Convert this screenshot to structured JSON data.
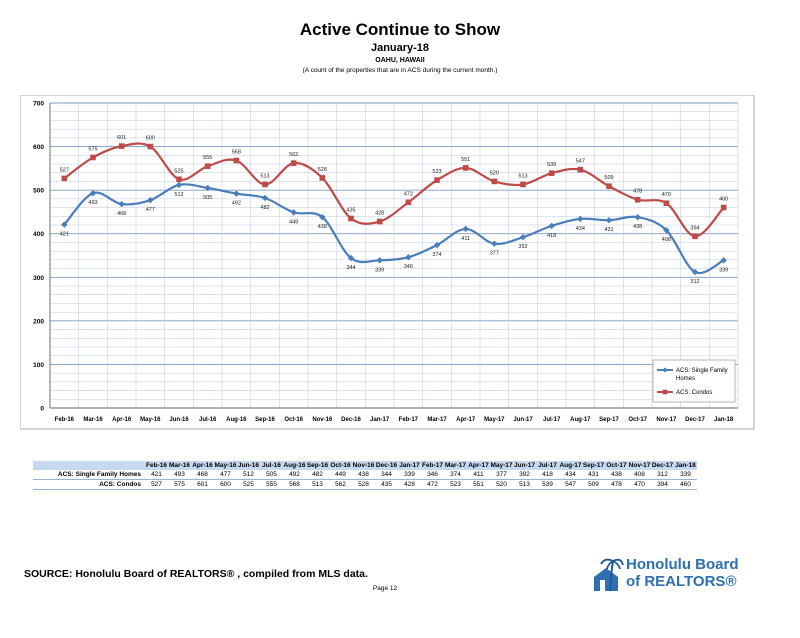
{
  "page": {
    "title": "Active Continue to Show",
    "subtitle": "January-18",
    "location": "OAHU, HAWAII",
    "note": "(A count of the properties that are in ACS during the current month.)",
    "source": "SOURCE:  Honolulu Board of REALTORS® , compiled from MLS data.",
    "page_number": "Page 12",
    "logo_line1": "Honolulu Board",
    "logo_line2": "of REALTORS®"
  },
  "colors": {
    "single_family": "#4a7ebb",
    "condos": "#be4b48",
    "grid": "#86a4c8",
    "table_header": "#c5d9f1"
  },
  "icons": {
    "logo": "palm-tree-house-icon"
  },
  "chart_data": {
    "type": "line",
    "categories": [
      "Feb-16",
      "Mar-16",
      "Apr-16",
      "May-16",
      "Jun-16",
      "Jul-16",
      "Aug-16",
      "Sep-16",
      "Oct-16",
      "Nov-16",
      "Dec-16",
      "Jan-17",
      "Feb-17",
      "Mar-17",
      "Apr-17",
      "May-17",
      "Jun-17",
      "Jul-17",
      "Aug-17",
      "Sep-17",
      "Oct-17",
      "Nov-17",
      "Dec-17",
      "Jan-18"
    ],
    "ylim": [
      0,
      700
    ],
    "yticks": [
      0,
      100,
      200,
      300,
      400,
      500,
      600,
      700
    ],
    "grid": true,
    "legend_position": "bottom-right",
    "series": [
      {
        "name": "ACS: Single Family Homes",
        "legend_line1": "ACS: Single Family",
        "legend_line2": "Homes",
        "values": [
          421,
          493,
          468,
          477,
          512,
          505,
          492,
          482,
          449,
          438,
          344,
          339,
          346,
          374,
          411,
          377,
          392,
          418,
          434,
          431,
          438,
          408,
          312,
          339
        ]
      },
      {
        "name": "ACS: Condos",
        "legend_line1": "ACS: Condos",
        "legend_line2": "",
        "values": [
          527,
          575,
          601,
          600,
          525,
          555,
          568,
          513,
          562,
          528,
          435,
          428,
          472,
          523,
          551,
          520,
          513,
          539,
          547,
          509,
          478,
          470,
          394,
          460
        ]
      }
    ]
  }
}
